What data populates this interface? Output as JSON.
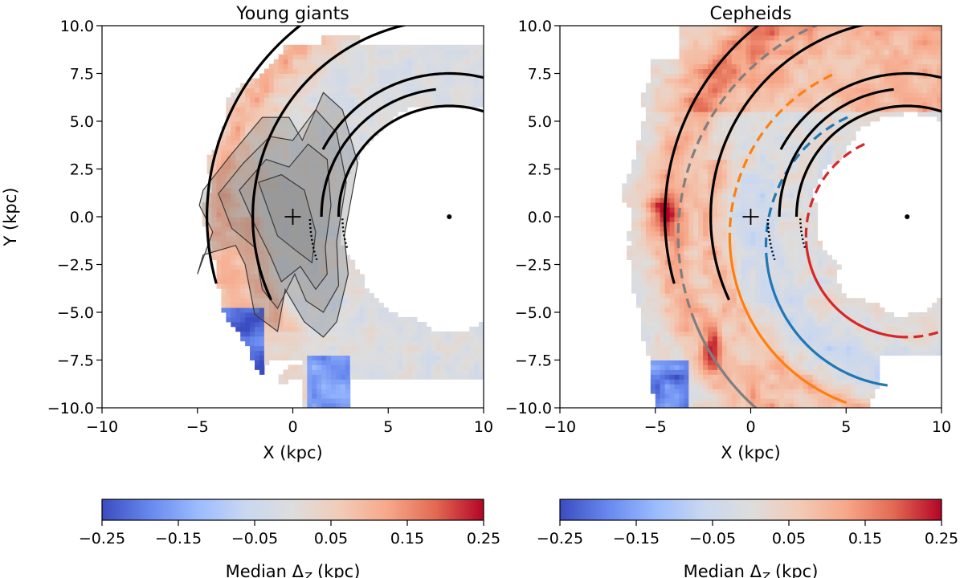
{
  "colors": {
    "cmap": [
      "#3b4cc0",
      "#6788ee",
      "#9abbff",
      "#c9d7f0",
      "#dddddd",
      "#f2cbb7",
      "#f7a789",
      "#e26952",
      "#b40426"
    ],
    "spiral_arm": "#000000",
    "gray_model": "#7f7f7f",
    "orange_model": "#ff7f0e",
    "blue_model": "#1f77b4",
    "red_model": "#d62728"
  },
  "chart_data": [
    {
      "type": "heatmap",
      "title": "Young giants",
      "xlabel": "X (kpc)",
      "ylabel": "Y (kpc)",
      "xlim": [
        -10,
        10
      ],
      "ylim": [
        -10,
        10
      ],
      "xticks": [
        "−10",
        "−5",
        "0",
        "5",
        "10"
      ],
      "yticks": [
        "10.0",
        "7.5",
        "5.0",
        "2.5",
        "0.0",
        "−2.5",
        "−5.0",
        "−7.5",
        "−10.0"
      ],
      "sun_marker": [
        0,
        0
      ],
      "galactic_center_marker": [
        8.2,
        0
      ],
      "has_density_contours": true,
      "colorbar": {
        "label": "Median Δ",
        "label_sub": "Z",
        "label_unit": " (kpc)",
        "range": [
          -0.25,
          0.25
        ],
        "ticks": [
          "−0.25",
          "−0.15",
          "−0.05",
          "0.05",
          "0.15",
          "0.25"
        ]
      }
    },
    {
      "type": "heatmap",
      "title": "Cepheids",
      "xlabel": "X (kpc)",
      "ylabel": "",
      "xlim": [
        -10,
        10
      ],
      "ylim": [
        -10,
        10
      ],
      "xticks": [
        "−10",
        "−5",
        "0",
        "5",
        "10"
      ],
      "yticks": [
        "10.0",
        "7.5",
        "5.0",
        "2.5",
        "0.0",
        "−2.5",
        "−5.0",
        "−7.5",
        "−10.0"
      ],
      "sun_marker": [
        0,
        0
      ],
      "galactic_center_marker": [
        8.2,
        0
      ],
      "has_model_arms": true,
      "colorbar": {
        "label": "Median Δ",
        "label_sub": "Z",
        "label_unit": " (kpc)",
        "range": [
          -0.25,
          0.25
        ],
        "ticks": [
          "−0.25",
          "−0.15",
          "−0.05",
          "0.05",
          "0.15",
          "0.25"
        ]
      }
    }
  ]
}
